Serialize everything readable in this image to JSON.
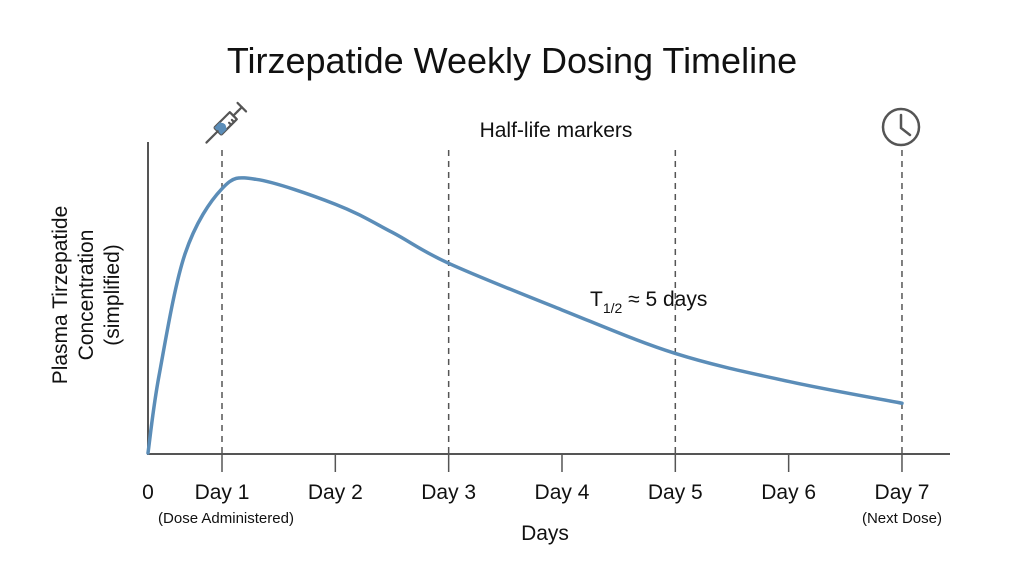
{
  "chart_data": {
    "type": "line",
    "title": "Tirzepatide Weekly Dosing Timeline",
    "xlabel": "Days",
    "ylabel": [
      "Plasma Tirzepatide",
      "Concentration",
      "(simplified)"
    ],
    "x_ticks": [
      {
        "value": 0,
        "label": "0",
        "sublabel": ""
      },
      {
        "value": 1,
        "label": "Day 1",
        "sublabel": "(Dose Administered)"
      },
      {
        "value": 2,
        "label": "Day 2",
        "sublabel": ""
      },
      {
        "value": 3,
        "label": "Day 3",
        "sublabel": ""
      },
      {
        "value": 4,
        "label": "Day 4",
        "sublabel": ""
      },
      {
        "value": 5,
        "label": "Day 5",
        "sublabel": ""
      },
      {
        "value": 6,
        "label": "Day 6",
        "sublabel": ""
      },
      {
        "value": 7,
        "label": "Day 7",
        "sublabel": "(Next Dose)"
      }
    ],
    "series": [
      {
        "x": [
          0,
          0.15,
          0.5,
          1,
          1.3,
          2,
          2.5,
          3,
          4,
          5,
          6,
          7
        ],
        "y": [
          0,
          0.25,
          0.64,
          0.85,
          0.88,
          0.8,
          0.71,
          0.61,
          0.46,
          0.32,
          0.23,
          0.16
        ],
        "color": "#5b8db8"
      }
    ],
    "ylim": [
      0,
      1
    ],
    "y_units": "relative (no ticks shown)",
    "grid": false,
    "vertical_markers": [
      1,
      3,
      5,
      7
    ],
    "annotations": {
      "markers_label": "Half-life markers",
      "half_life_symbol": "T",
      "half_life_sub": "1/2",
      "half_life_text": " ≈ 5 days"
    },
    "icons": {
      "day1": "syringe-icon",
      "day7": "clock-icon"
    },
    "colors": {
      "line": "#5b8db8",
      "axis": "#555555",
      "marker": "#555555",
      "syringe_fill": "#5b8db8"
    }
  }
}
